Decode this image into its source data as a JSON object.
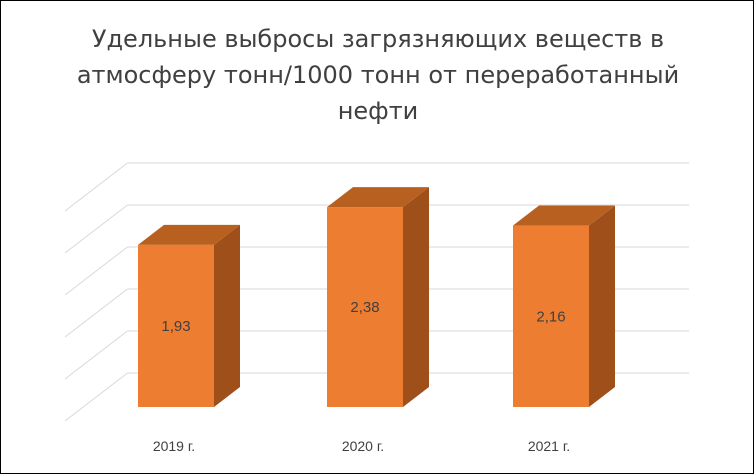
{
  "chart_data": {
    "type": "bar",
    "style": "3d-column",
    "title": "Удельные выбросы загрязняющих веществ в атмосферу тонн/1000 тонн от переработанный нефти",
    "categories": [
      "2019 г.",
      "2020 г.",
      "2021 г."
    ],
    "values": [
      1.93,
      2.38,
      2.16
    ],
    "value_labels": [
      "1,93",
      "2,38",
      "2,16"
    ],
    "xlabel": "",
    "ylabel": "",
    "ylim": [
      0,
      2.5
    ],
    "y_axis_visible": false,
    "grid": true,
    "legend": "none",
    "colors": {
      "bar_front": "#ED7D31",
      "bar_side": "#9E4F1A",
      "bar_top": "#B8601F",
      "gridline": "#D9D9D9",
      "text": "#404040"
    }
  }
}
